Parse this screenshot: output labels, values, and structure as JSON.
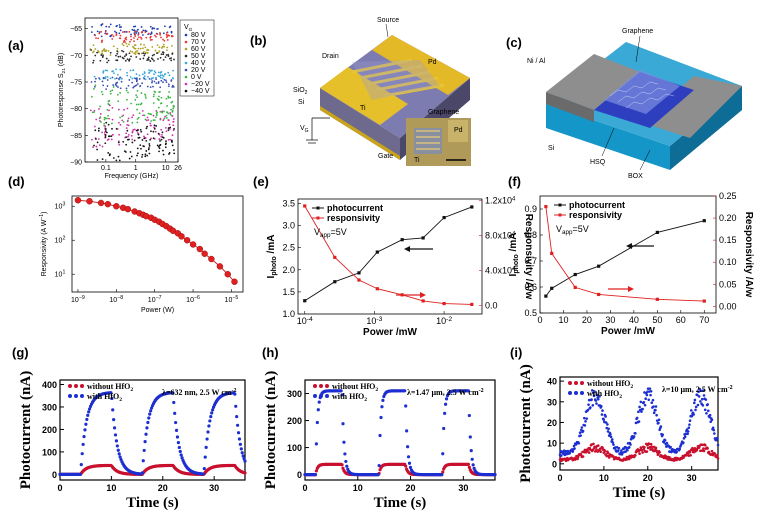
{
  "panels": [
    {
      "id": "a",
      "label": "(a)"
    },
    {
      "id": "b",
      "label": "(b)"
    },
    {
      "id": "c",
      "label": "(c)"
    },
    {
      "id": "d",
      "label": "(d)"
    },
    {
      "id": "e",
      "label": "(e)"
    },
    {
      "id": "f",
      "label": "(f)"
    },
    {
      "id": "g",
      "label": "(g)"
    },
    {
      "id": "h",
      "label": "(h)"
    },
    {
      "id": "i",
      "label": "(i)"
    }
  ],
  "diagram_b": {
    "source": "Source",
    "drain": "Drain",
    "pd": "Pd",
    "pd2": "Pd",
    "sio2": "SiO",
    "sio2_sub": "2",
    "si": "Si",
    "ti": "Ti",
    "ti2": "Ti",
    "vg": "V",
    "vg_sub": "G",
    "gate": "Gate",
    "graphene": "Graphene"
  },
  "diagram_c": {
    "graphene": "Graphene",
    "nial": "Ni / Al",
    "si": "Si",
    "hsq": "HSQ",
    "box": "BOX"
  },
  "chart_data": [
    {
      "panel": "a",
      "type": "scatter",
      "xlabel": "Frequency (GHz)",
      "ylabel": "Photoresponse S",
      "ylabel_sub": "21",
      "ylabel_unit": "(dB)",
      "xscale": "log",
      "xlim": [
        0.02,
        26
      ],
      "ylim": [
        -90,
        -63
      ],
      "xticks": [
        {
          "v": 0.1,
          "t": "0.1"
        },
        {
          "v": 1,
          "t": "1"
        },
        {
          "v": 10,
          "t": "10"
        },
        {
          "v": 26,
          "t": "26"
        }
      ],
      "yticks": [
        -90,
        -85,
        -80,
        -75,
        -70,
        -65
      ],
      "legend_title": "V",
      "legend_title_sub": "G",
      "series": [
        {
          "name": "80 V",
          "color": "#1f3fb0",
          "y": -65.3
        },
        {
          "name": "70 V",
          "color": "#e53935",
          "y": -66.5
        },
        {
          "name": "60 V",
          "color": "#b0a020",
          "y": -68.8
        },
        {
          "name": "50 V",
          "color": "#2a2a2a",
          "y": -70.2
        },
        {
          "name": "40 V",
          "color": "#3aa6d8",
          "y": -73.6
        },
        {
          "name": "20 V",
          "color": "#3a4fb5",
          "y": -75.2
        },
        {
          "name": "0 V",
          "color": "#38b540",
          "y": -79.3
        },
        {
          "name": "−20 V",
          "color": "#cc33aa",
          "y": -83.2
        },
        {
          "name": "−40 V",
          "color": "#111111",
          "y": -86.0
        }
      ]
    },
    {
      "panel": "d",
      "type": "line",
      "xlabel": "Power (W)",
      "ylabel": "Responsivity (A W",
      "ylabel_sup": "−1",
      "ylabel_end": ")",
      "xscale": "log",
      "yscale": "log",
      "xlim": [
        7e-10,
        2e-05
      ],
      "ylim": [
        3,
        2000
      ],
      "xticks": [
        {
          "v": 1e-09,
          "b": "10",
          "e": "−9"
        },
        {
          "v": 1e-08,
          "b": "10",
          "e": "−8"
        },
        {
          "v": 1e-07,
          "b": "10",
          "e": "−7"
        },
        {
          "v": 1e-06,
          "b": "10",
          "e": "−6"
        },
        {
          "v": 1e-05,
          "b": "10",
          "e": "−5"
        }
      ],
      "yticks": [
        {
          "v": 10,
          "b": "10",
          "e": "1"
        },
        {
          "v": 100,
          "b": "10",
          "e": "2"
        },
        {
          "v": 1000,
          "b": "10",
          "e": "3"
        }
      ],
      "x": [
        1e-09,
        2e-09,
        4e-09,
        6e-09,
        1e-08,
        1.5e-08,
        2e-08,
        3e-08,
        4e-08,
        5e-08,
        6e-08,
        8e-08,
        1e-07,
        1.3e-07,
        1.6e-07,
        2e-07,
        2.5e-07,
        3e-07,
        4e-07,
        5e-07,
        7e-07,
        1e-06,
        1.5e-06,
        2e-06,
        3e-06,
        5e-06,
        8e-06,
        1.2e-05
      ],
      "y": [
        1500,
        1400,
        1250,
        1150,
        1000,
        900,
        820,
        700,
        620,
        560,
        510,
        460,
        400,
        350,
        300,
        260,
        220,
        190,
        160,
        130,
        100,
        75,
        55,
        40,
        28,
        17,
        10,
        6
      ]
    },
    {
      "panel": "e",
      "type": "line",
      "xlabel": "Power /mW",
      "ylabel": "I",
      "ylabel_sub": "photo",
      "ylabel_end": " /mA",
      "y2label": "Responsivity /A/w",
      "xscale": "log",
      "xlim": [
        8e-05,
        0.035
      ],
      "ylim": [
        1,
        3.6
      ],
      "y2lim": [
        -0.1,
        1.22
      ],
      "xticks": [
        {
          "v": 0.0001,
          "b": "10",
          "e": "-4"
        },
        {
          "v": 0.001,
          "b": "10",
          "e": "-3"
        },
        {
          "v": 0.01,
          "b": "10",
          "e": "-2"
        }
      ],
      "yticks": [
        1.0,
        1.5,
        2.0,
        2.5,
        3.0,
        3.5
      ],
      "y2ticks": [
        {
          "v": 0,
          "t": "0.0"
        },
        {
          "v": 0.4,
          "t": "4.0x10"
        },
        {
          "v": 0.8,
          "t": "8.0x10"
        },
        {
          "v": 1.2,
          "t": "1.2x10"
        }
      ],
      "y2tick_exp": "4",
      "annotation": "V",
      "annotation_sub": "app",
      "annotation_end": "=5V",
      "series": [
        {
          "name": "photocurrent",
          "color": "#111111",
          "x": [
            0.0001,
            0.00027,
            0.0006,
            0.0011,
            0.0025,
            0.005,
            0.01,
            0.025
          ],
          "y": [
            1.3,
            1.73,
            1.93,
            2.4,
            2.68,
            2.72,
            3.18,
            3.42
          ]
        },
        {
          "name": "responsivity",
          "color": "#e02020",
          "x": [
            0.0001,
            0.00027,
            0.0006,
            0.0011,
            0.0025,
            0.005,
            0.01,
            0.025
          ],
          "y": [
            1.14,
            0.55,
            0.29,
            0.19,
            0.12,
            0.05,
            0.02,
            0.01
          ]
        }
      ]
    },
    {
      "panel": "f",
      "type": "line",
      "xlabel": "Power  /mW",
      "ylabel": "I",
      "ylabel_sub": "photo",
      "ylabel_end": " /mA",
      "y2label": "Responsivity /A/w",
      "xlim": [
        0,
        75
      ],
      "ylim": [
        0.5,
        0.95
      ],
      "y2lim": [
        -0.015,
        0.25
      ],
      "xticks": [
        0,
        10,
        20,
        30,
        40,
        50,
        60,
        70
      ],
      "yticks": [
        0.5,
        0.6,
        0.7,
        0.8,
        0.9
      ],
      "y2ticks": [
        {
          "v": 0,
          "t": "0.00"
        },
        {
          "v": 0.05,
          "t": "0.05"
        },
        {
          "v": 0.1,
          "t": "0.10"
        },
        {
          "v": 0.15,
          "t": "0.15"
        },
        {
          "v": 0.2,
          "t": "0.20"
        },
        {
          "v": 0.25,
          "t": "0.25"
        }
      ],
      "annotation": "V",
      "annotation_sub": "app",
      "annotation_end": "=5V",
      "series": [
        {
          "name": "photocurrent",
          "color": "#111111",
          "x": [
            2.5,
            5,
            15,
            25,
            50,
            70
          ],
          "y": [
            0.565,
            0.595,
            0.648,
            0.68,
            0.81,
            0.855
          ]
        },
        {
          "name": "responsivity",
          "color": "#e02020",
          "x": [
            2.5,
            5,
            15,
            25,
            50,
            70
          ],
          "y": [
            0.226,
            0.12,
            0.043,
            0.027,
            0.016,
            0.012
          ]
        }
      ]
    },
    {
      "panel": "g",
      "type": "line",
      "xlabel": "Time (s)",
      "ylabel": "Photocurrent (nA)",
      "xlim": [
        0,
        36
      ],
      "ylim": [
        -25,
        420
      ],
      "xticks": [
        0,
        10,
        20,
        30
      ],
      "yticks": [
        0,
        100,
        200,
        300,
        400
      ],
      "annotation": "λ=632 nm, 2.5 W cm",
      "annotation_sup": "-2",
      "series": [
        {
          "name": "without HfO",
          "name_sub": "2",
          "color": "#c8102e",
          "peak": 40,
          "base": 0
        },
        {
          "name": "with HfO",
          "name_sub": "2",
          "color": "#1d2fd1",
          "peak": 365,
          "base": 0
        }
      ],
      "period": 12,
      "on": [
        4,
        16,
        28
      ]
    },
    {
      "panel": "h",
      "type": "line",
      "xlabel": "Time (s)",
      "ylabel": "Photocurrent (nA)",
      "xlim": [
        0,
        36
      ],
      "ylim": [
        -20,
        350
      ],
      "xticks": [
        0,
        10,
        20,
        30
      ],
      "yticks": [
        0,
        100,
        200,
        300
      ],
      "annotation": "λ=1.47 μm, 2.5 W cm",
      "annotation_sup": "-2",
      "series": [
        {
          "name": "without HfO",
          "name_sub": "2",
          "color": "#c8102e",
          "peak": 38,
          "base": 0
        },
        {
          "name": "with HfO",
          "name_sub": "2",
          "color": "#1d2fd1",
          "peak": 310,
          "base": 0
        }
      ],
      "on": [
        2,
        14,
        26
      ]
    },
    {
      "panel": "i",
      "type": "scatter",
      "xlabel": "Time (s)",
      "ylabel": "Photocurrent (nA)",
      "xlim": [
        0,
        36
      ],
      "ylim": [
        -3,
        42
      ],
      "xticks": [
        0,
        10,
        20,
        30
      ],
      "yticks": [
        0,
        10,
        20,
        30,
        40
      ],
      "annotation": "λ=10 μm, 2.5 W cm",
      "annotation_sup": "-2",
      "series": [
        {
          "name": "without HfO",
          "name_sub": "2",
          "color": "#c8102e",
          "peak": 8,
          "base": 2
        },
        {
          "name": "with HfO",
          "name_sub": "2",
          "color": "#1d2fd1",
          "peak": 33,
          "base": 5
        }
      ],
      "centers": [
        8,
        20,
        32
      ]
    }
  ]
}
